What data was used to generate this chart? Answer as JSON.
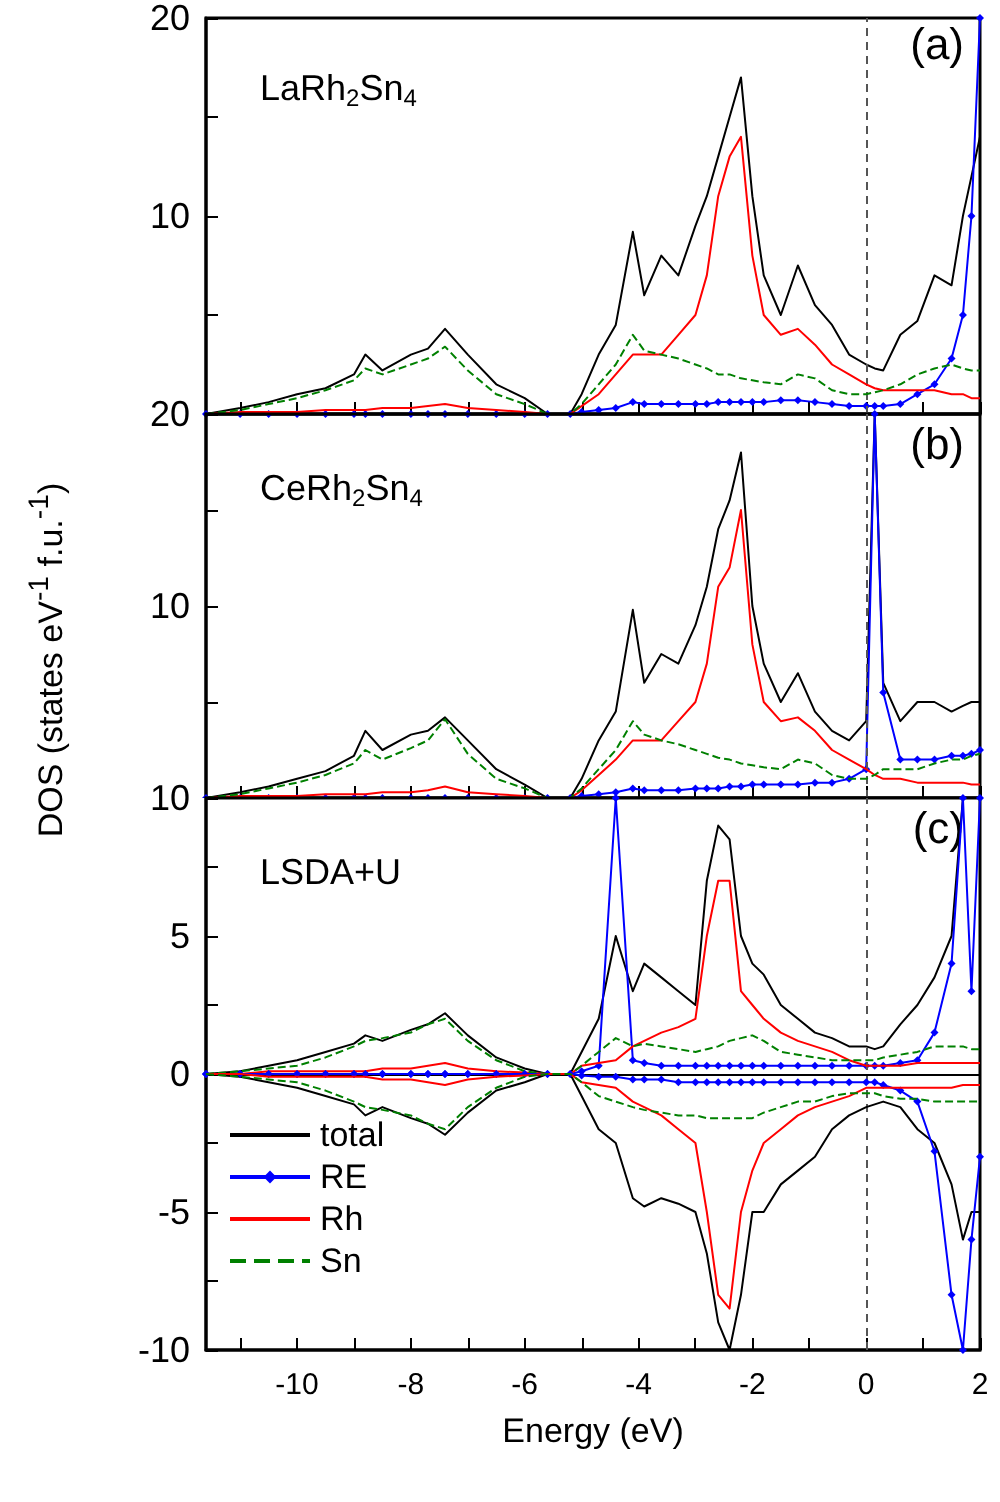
{
  "chart_data": [
    {
      "type": "line",
      "annotations": [
        "LaRh$_{2}$Sn$_{4}$",
        "(a)"
      ],
      "tick_labels": "y",
      "x": [
        -11.6,
        -11,
        -10.5,
        -10,
        -9.5,
        -9,
        -8.8,
        -8.5,
        -8,
        -7.7,
        -7.4,
        -7,
        -6.5,
        -6,
        -5.6,
        -5.2,
        -5,
        -4.7,
        -4.4,
        -4.1,
        -3.9,
        -3.6,
        -3.3,
        -3,
        -2.8,
        -2.6,
        -2.4,
        -2.2,
        -2,
        -1.8,
        -1.5,
        -1.2,
        -0.9,
        -0.6,
        -0.3,
        0,
        0.15,
        0.3,
        0.6,
        0.9,
        1.2,
        1.5,
        1.7,
        1.85,
        2
      ],
      "xlim": [
        -11.6,
        2
      ],
      "xticks": [
        {
          "value": -11,
          "label": null
        },
        -10,
        {
          "value": -9,
          "label": null
        },
        -8,
        {
          "value": -7,
          "label": null
        },
        -6,
        {
          "value": -5,
          "label": null
        },
        -4,
        {
          "value": -3,
          "label": null
        },
        -2,
        {
          "value": -1,
          "label": null
        },
        0,
        {
          "value": 1,
          "label": null
        },
        2
      ],
      "ylim": [
        0,
        20
      ],
      "yticks": [
        {
          "value": 0,
          "label": null
        },
        {
          "value": 5,
          "label": null
        },
        10,
        {
          "value": 15,
          "label": null
        },
        20
      ],
      "ref_lines": [
        {
          "axis": "x",
          "value": 0,
          "label": null,
          "color": "#555555",
          "line_style": "dashed"
        }
      ],
      "series": [
        {
          "color": "#000000",
          "values": [
            0,
            0.3,
            0.6,
            1.0,
            1.3,
            2.0,
            3.0,
            2.2,
            3.0,
            3.3,
            4.3,
            3.0,
            1.5,
            0.8,
            0,
            0,
            1.0,
            3,
            4.5,
            9.2,
            6,
            8,
            7,
            9.5,
            11,
            13,
            15,
            17,
            11,
            7,
            5,
            7.5,
            5.5,
            4.5,
            3,
            2.5,
            2.3,
            2.2,
            4,
            4.7,
            7,
            6.5,
            10,
            12,
            14
          ]
        },
        {
          "color": "#0000ff",
          "marker": "diamond",
          "values": [
            0,
            0,
            0,
            0,
            0,
            0,
            0,
            0,
            0,
            0,
            0,
            0,
            0,
            0,
            0,
            0,
            0.1,
            0.2,
            0.3,
            0.6,
            0.5,
            0.5,
            0.5,
            0.5,
            0.5,
            0.6,
            0.6,
            0.6,
            0.6,
            0.6,
            0.7,
            0.7,
            0.6,
            0.5,
            0.4,
            0.4,
            0.4,
            0.4,
            0.5,
            1,
            1.5,
            2.8,
            5,
            10,
            20
          ]
        },
        {
          "color": "#ff0000",
          "values": [
            0,
            0.1,
            0.1,
            0.1,
            0.2,
            0.2,
            0.2,
            0.3,
            0.3,
            0.4,
            0.5,
            0.3,
            0.2,
            0.1,
            0,
            0,
            0.4,
            1,
            2,
            3,
            3,
            3,
            4,
            5,
            7,
            11,
            13,
            14,
            8,
            5,
            4,
            4.3,
            3.5,
            2.5,
            2,
            1.5,
            1.3,
            1.2,
            1.2,
            1.2,
            1.2,
            1.0,
            1.0,
            0.8,
            0.8
          ]
        },
        {
          "color": "#008000",
          "line_style": "dashed",
          "values": [
            0,
            0.2,
            0.5,
            0.8,
            1.2,
            1.7,
            2.3,
            2,
            2.5,
            2.8,
            3.4,
            2.2,
            1,
            0.5,
            0,
            0,
            0.5,
            1.5,
            2.5,
            4,
            3.2,
            3,
            2.8,
            2.5,
            2.3,
            2,
            2,
            1.8,
            1.7,
            1.6,
            1.5,
            2,
            1.8,
            1.2,
            1.0,
            1.0,
            1.1,
            1.2,
            1.5,
            2,
            2.3,
            2.5,
            2.3,
            2.2,
            2.2
          ]
        }
      ]
    },
    {
      "type": "line",
      "annotations": [
        "CeRh$_{2}$Sn$_{4}$",
        "(b)"
      ],
      "tick_labels": "y",
      "ylabel": "DOS (states eV$^{-1}$ f.u.$^{-1}$)",
      "x": [
        -11.6,
        -11,
        -10.5,
        -10,
        -9.5,
        -9,
        -8.8,
        -8.5,
        -8,
        -7.7,
        -7.4,
        -7,
        -6.5,
        -6,
        -5.6,
        -5.2,
        -5,
        -4.7,
        -4.4,
        -4.1,
        -3.9,
        -3.6,
        -3.3,
        -3,
        -2.8,
        -2.6,
        -2.4,
        -2.2,
        -2,
        -1.8,
        -1.5,
        -1.2,
        -0.9,
        -0.6,
        -0.3,
        0,
        0.15,
        0.3,
        0.6,
        0.9,
        1.2,
        1.5,
        1.7,
        1.85,
        2
      ],
      "xlim": [
        -11.6,
        2
      ],
      "xticks": [
        {
          "value": -11,
          "label": null
        },
        -10,
        {
          "value": -9,
          "label": null
        },
        -8,
        {
          "value": -7,
          "label": null
        },
        -6,
        {
          "value": -5,
          "label": null
        },
        -4,
        {
          "value": -3,
          "label": null
        },
        -2,
        {
          "value": -1,
          "label": null
        },
        0,
        {
          "value": 1,
          "label": null
        },
        2
      ],
      "ylim": [
        0,
        20
      ],
      "yticks": [
        {
          "value": 0,
          "label": null
        },
        {
          "value": 5,
          "label": null
        },
        10,
        {
          "value": 15,
          "label": null
        },
        20
      ],
      "ref_lines": [
        {
          "axis": "x",
          "value": 0,
          "label": null,
          "color": "#555555",
          "line_style": "dashed"
        }
      ],
      "series": [
        {
          "color": "#000000",
          "values": [
            0,
            0.3,
            0.6,
            1.0,
            1.4,
            2.2,
            3.5,
            2.5,
            3.3,
            3.5,
            4.2,
            3.0,
            1.5,
            0.7,
            0,
            0,
            1.0,
            3,
            4.5,
            9.8,
            6,
            7.5,
            7,
            9,
            11,
            14,
            15.5,
            18,
            10,
            7,
            5,
            6.5,
            4.5,
            3.5,
            3,
            4,
            20,
            6,
            4,
            5,
            5,
            4.5,
            4.8,
            5,
            5
          ]
        },
        {
          "color": "#0000ff",
          "marker": "diamond",
          "values": [
            0,
            0,
            0,
            0,
            0,
            0,
            0,
            0,
            0,
            0,
            0,
            0,
            0,
            0,
            0,
            0,
            0.1,
            0.2,
            0.3,
            0.5,
            0.4,
            0.4,
            0.4,
            0.5,
            0.5,
            0.5,
            0.6,
            0.6,
            0.7,
            0.7,
            0.7,
            0.7,
            0.8,
            0.8,
            1,
            1.5,
            20,
            5.5,
            2,
            2,
            2,
            2.2,
            2.2,
            2.3,
            2.5
          ]
        },
        {
          "color": "#ff0000",
          "values": [
            0,
            0.1,
            0.1,
            0.1,
            0.2,
            0.2,
            0.2,
            0.3,
            0.3,
            0.4,
            0.6,
            0.3,
            0.2,
            0.1,
            0,
            0,
            0.4,
            1.2,
            2,
            3,
            3,
            3,
            4,
            5,
            7,
            11,
            12,
            15,
            8,
            5,
            4,
            4.2,
            3.5,
            2.5,
            2,
            1.5,
            1.2,
            1,
            1,
            0.8,
            0.8,
            0.8,
            0.8,
            0.7,
            0.7
          ]
        },
        {
          "color": "#008000",
          "line_style": "dashed",
          "values": [
            0,
            0.2,
            0.5,
            0.8,
            1.2,
            1.8,
            2.5,
            2,
            2.6,
            3,
            4.1,
            2.3,
            1,
            0.5,
            0,
            0,
            0.5,
            1.5,
            2.5,
            4,
            3.3,
            3,
            2.8,
            2.5,
            2.3,
            2.1,
            2,
            1.8,
            1.7,
            1.6,
            1.5,
            2,
            1.8,
            1.2,
            1.0,
            1.0,
            1.2,
            1.5,
            1.5,
            1.5,
            1.8,
            2,
            2,
            2.2,
            2.3
          ]
        }
      ]
    },
    {
      "type": "line",
      "annotations": [
        "LSDA+U",
        "(c)"
      ],
      "xlabel": "Energy (eV)",
      "legend": "bottom left",
      "x": [
        -11.6,
        -11,
        -10.5,
        -10,
        -9.5,
        -9,
        -8.8,
        -8.5,
        -8,
        -7.7,
        -7.4,
        -7,
        -6.5,
        -6,
        -5.6,
        -5.2,
        -5,
        -4.7,
        -4.4,
        -4.1,
        -3.9,
        -3.6,
        -3.3,
        -3,
        -2.8,
        -2.6,
        -2.4,
        -2.2,
        -2,
        -1.8,
        -1.5,
        -1.2,
        -0.9,
        -0.6,
        -0.3,
        0,
        0.15,
        0.3,
        0.6,
        0.9,
        1.2,
        1.5,
        1.7,
        1.85,
        2
      ],
      "xlim": [
        -11.6,
        2
      ],
      "xticks": [
        {
          "value": -11,
          "label": null
        },
        -10,
        {
          "value": -9,
          "label": null
        },
        -8,
        {
          "value": -7,
          "label": null
        },
        -6,
        {
          "value": -5,
          "label": null
        },
        -4,
        {
          "value": -3,
          "label": null
        },
        -2,
        {
          "value": -1,
          "label": null
        },
        0,
        {
          "value": 1,
          "label": null
        },
        2
      ],
      "ylim": [
        -10,
        10
      ],
      "yticks": [
        -10,
        {
          "value": -7.5,
          "label": null
        },
        -5,
        {
          "value": -2.5,
          "label": null
        },
        0,
        {
          "value": 2.5,
          "label": null
        },
        5,
        {
          "value": 7.5,
          "label": null
        },
        10
      ],
      "ref_lines": [
        {
          "axis": "x",
          "value": 0,
          "label": null,
          "color": "#555555",
          "line_style": "dashed"
        },
        {
          "axis": "y",
          "value": 0,
          "label": null,
          "color": "#000000",
          "line_style": "solid"
        }
      ],
      "series": [
        {
          "name": "total",
          "color": "#000000",
          "values": [
            0,
            0.1,
            0.3,
            0.5,
            0.8,
            1.1,
            1.4,
            1.2,
            1.6,
            1.8,
            2.2,
            1.4,
            0.6,
            0.2,
            0,
            0,
            0.8,
            2,
            5,
            3,
            4,
            3.5,
            3,
            2.5,
            7,
            9,
            8.5,
            5,
            4,
            3.6,
            2.5,
            2,
            1.5,
            1.3,
            1,
            1,
            0.9,
            1,
            1.8,
            2.5,
            3.5,
            5,
            10,
            10,
            10
          ]
        },
        {
          "name": "RE",
          "color": "#0000ff",
          "marker": "diamond",
          "values": [
            0,
            0,
            0,
            0,
            0,
            0,
            0,
            0,
            0,
            0,
            0,
            0,
            0,
            0,
            0,
            0,
            0.1,
            0.3,
            10,
            0.5,
            0.4,
            0.3,
            0.3,
            0.3,
            0.3,
            0.3,
            0.3,
            0.3,
            0.3,
            0.3,
            0.3,
            0.3,
            0.3,
            0.3,
            0.3,
            0.3,
            0.3,
            0.3,
            0.4,
            0.5,
            1.5,
            4,
            10,
            3,
            10
          ]
        },
        {
          "name": "Rh",
          "color": "#ff0000",
          "values": [
            0,
            0,
            0.1,
            0.1,
            0.1,
            0.1,
            0.1,
            0.2,
            0.2,
            0.3,
            0.4,
            0.2,
            0.1,
            0.05,
            0,
            0,
            0.3,
            0.4,
            0.5,
            1,
            1.2,
            1.5,
            1.7,
            2,
            5,
            7,
            7,
            3,
            2.5,
            2,
            1.5,
            1.2,
            1,
            0.8,
            0.5,
            0.3,
            0.3,
            0.3,
            0.3,
            0.4,
            0.4,
            0.4,
            0.4,
            0.4,
            0.4
          ]
        },
        {
          "name": "Sn",
          "color": "#008000",
          "line_style": "dashed",
          "values": [
            0,
            0.1,
            0.2,
            0.3,
            0.6,
            1.0,
            1.2,
            1.3,
            1.5,
            1.8,
            2.0,
            1.2,
            0.5,
            0.1,
            0,
            0,
            0.3,
            0.8,
            1.3,
            1.0,
            1.1,
            1.0,
            0.9,
            0.8,
            0.9,
            1.0,
            1.2,
            1.3,
            1.4,
            1.2,
            0.8,
            0.7,
            0.6,
            0.5,
            0.5,
            0.5,
            0.5,
            0.6,
            0.7,
            0.8,
            1.0,
            1.0,
            1.0,
            0.9,
            0.9
          ]
        },
        {
          "color": "#000000",
          "values": [
            0,
            -0.1,
            -0.3,
            -0.5,
            -0.8,
            -1.1,
            -1.5,
            -1.2,
            -1.6,
            -1.8,
            -2.2,
            -1.4,
            -0.6,
            -0.3,
            0,
            0,
            -0.8,
            -2,
            -2.5,
            -4.5,
            -4.8,
            -4.5,
            -4.7,
            -5,
            -6.5,
            -9,
            -10,
            -8,
            -5,
            -5,
            -4,
            -3.5,
            -3,
            -2,
            -1.5,
            -1.2,
            -1.1,
            -1,
            -1.2,
            -2,
            -2.5,
            -4,
            -6,
            -5,
            -5
          ]
        },
        {
          "color": "#0000ff",
          "marker": "diamond",
          "values": [
            0,
            0,
            0,
            0,
            0,
            0,
            0,
            0,
            0,
            0,
            0,
            0,
            0,
            0,
            0,
            0,
            -0.05,
            -0.1,
            -0.1,
            -0.2,
            -0.2,
            -0.2,
            -0.3,
            -0.3,
            -0.3,
            -0.3,
            -0.3,
            -0.3,
            -0.3,
            -0.3,
            -0.3,
            -0.3,
            -0.3,
            -0.3,
            -0.3,
            -0.3,
            -0.3,
            -0.4,
            -0.6,
            -1,
            -2.8,
            -8,
            -10,
            -6,
            -3
          ]
        },
        {
          "color": "#ff0000",
          "values": [
            0,
            0,
            -0.1,
            -0.1,
            -0.1,
            -0.1,
            -0.1,
            -0.2,
            -0.2,
            -0.3,
            -0.4,
            -0.2,
            -0.1,
            -0.05,
            0,
            0,
            -0.3,
            -0.4,
            -0.5,
            -1,
            -1.2,
            -1.5,
            -2,
            -2.5,
            -5,
            -8,
            -8.5,
            -5,
            -3.5,
            -2.5,
            -2,
            -1.5,
            -1.2,
            -1,
            -0.8,
            -0.5,
            -0.5,
            -0.5,
            -0.5,
            -0.5,
            -0.5,
            -0.5,
            -0.4,
            -0.4,
            -0.4
          ]
        },
        {
          "color": "#008000",
          "line_style": "dashed",
          "values": [
            0,
            -0.1,
            -0.2,
            -0.3,
            -0.6,
            -1.0,
            -1.2,
            -1.3,
            -1.5,
            -1.8,
            -2.0,
            -1.2,
            -0.5,
            -0.1,
            0,
            0,
            -0.3,
            -0.8,
            -1.0,
            -1.2,
            -1.3,
            -1.4,
            -1.5,
            -1.5,
            -1.6,
            -1.6,
            -1.6,
            -1.6,
            -1.6,
            -1.4,
            -1.2,
            -1.0,
            -1.0,
            -0.8,
            -0.7,
            -0.7,
            -0.7,
            -0.8,
            -0.9,
            -0.9,
            -1.0,
            -1.0,
            -1.0,
            -1.0,
            -1.0
          ]
        }
      ]
    }
  ]
}
